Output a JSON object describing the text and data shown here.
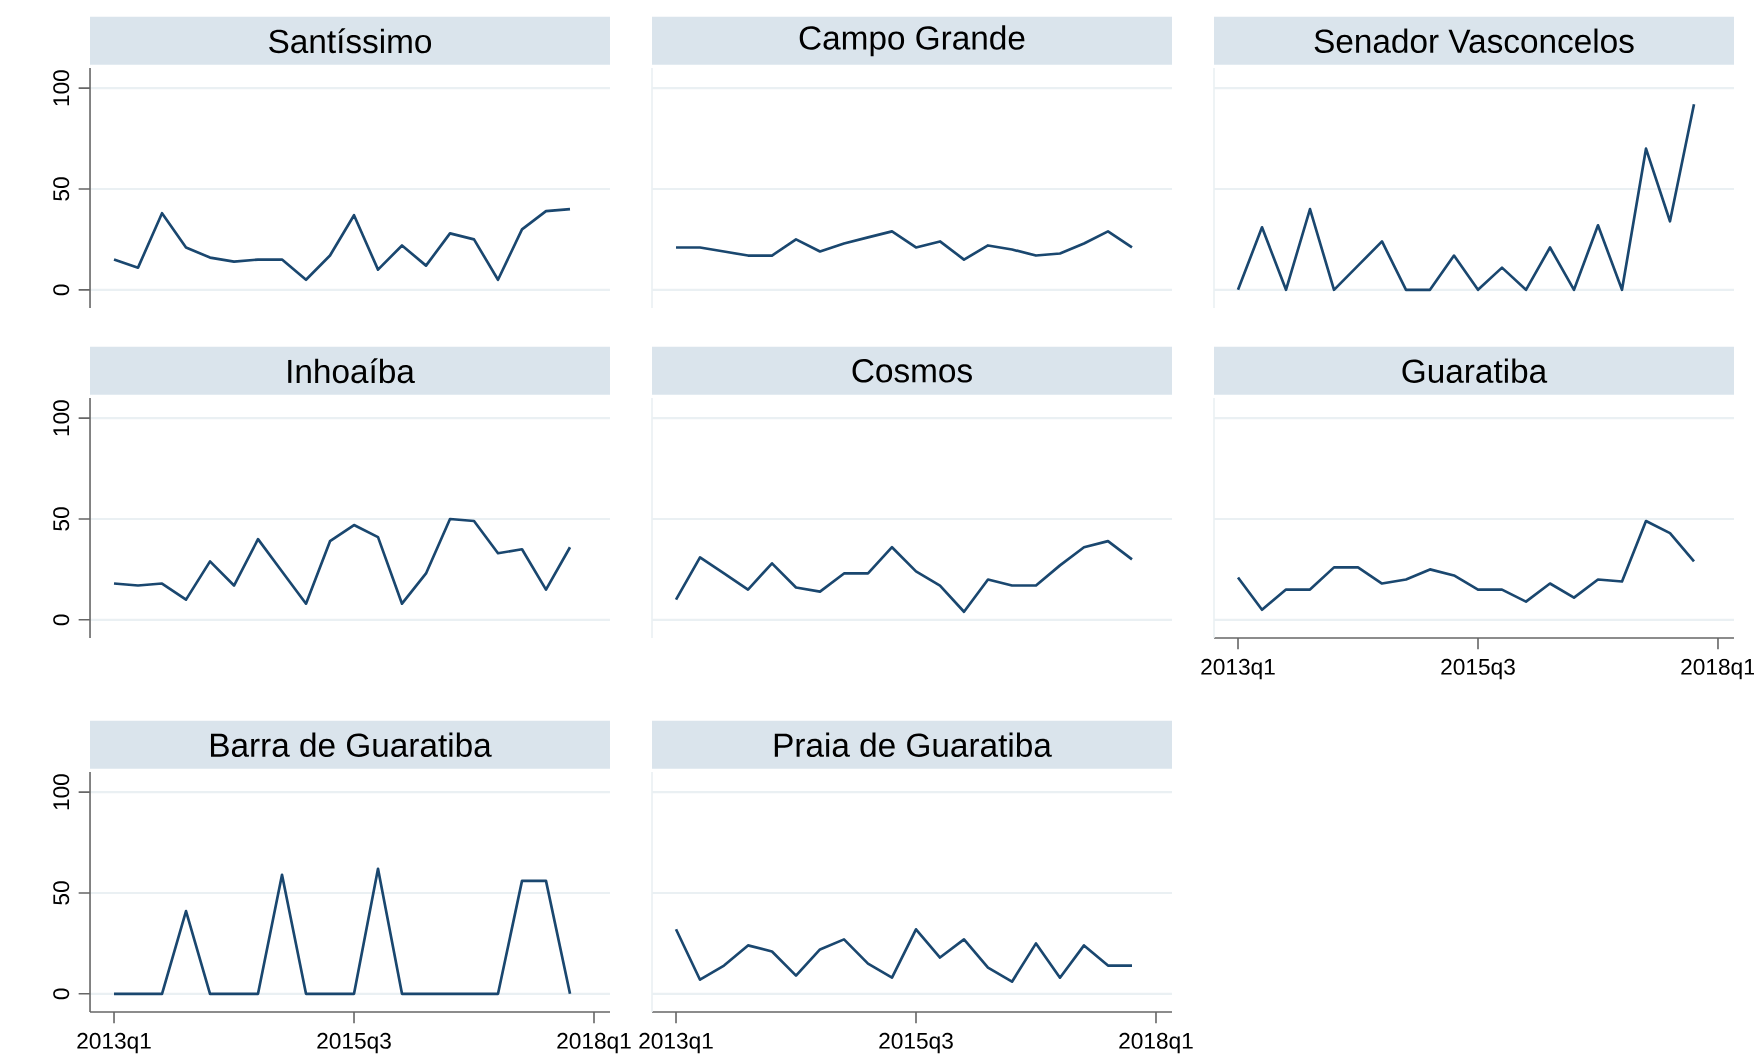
{
  "chart_data": [
    {
      "type": "line",
      "title": "Santíssimo",
      "color": "#1a476f",
      "x": [
        "2013-01",
        "2013-04",
        "2013-07",
        "2013-10",
        "2014-01",
        "2014-04",
        "2014-07",
        "2014-10",
        "2015-01",
        "2015-04",
        "2015-07",
        "2015-10",
        "2016-01",
        "2016-04",
        "2016-07",
        "2016-10",
        "2017-01",
        "2017-04",
        "2017-07",
        "2017-10"
      ],
      "values": [
        15,
        11,
        38,
        21,
        16,
        14,
        15,
        15,
        5,
        17,
        37,
        10,
        22,
        12,
        28,
        25,
        5,
        30,
        39,
        40
      ],
      "xlim": [
        "2012-10",
        "2018-03"
      ],
      "ylim": [
        -9,
        110
      ],
      "yticks": [
        0,
        50,
        100
      ],
      "grid": "y",
      "tick_labels": "y"
    },
    {
      "type": "line",
      "title": "Campo Grande",
      "color": "#1a476f",
      "x": [
        "2013-01",
        "2013-04",
        "2013-07",
        "2013-10",
        "2014-01",
        "2014-04",
        "2014-07",
        "2014-10",
        "2015-01",
        "2015-04",
        "2015-07",
        "2015-10",
        "2016-01",
        "2016-04",
        "2016-07",
        "2016-10",
        "2017-01",
        "2017-04",
        "2017-07",
        "2017-10"
      ],
      "values": [
        21,
        21,
        19,
        17,
        17,
        25,
        19,
        23,
        26,
        29,
        21,
        24,
        15,
        22,
        20,
        17,
        18,
        23,
        29,
        21
      ],
      "xlim": [
        "2012-10",
        "2018-03"
      ],
      "ylim": [
        -9,
        110
      ],
      "yticks": [
        0,
        50,
        100
      ],
      "grid": "y",
      "tick_labels": false
    },
    {
      "type": "line",
      "title": "Senador Vasconcelos",
      "color": "#1a476f",
      "x": [
        "2013-01",
        "2013-04",
        "2013-07",
        "2013-10",
        "2014-01",
        "2014-04",
        "2014-07",
        "2014-10",
        "2015-01",
        "2015-04",
        "2015-07",
        "2015-10",
        "2016-01",
        "2016-04",
        "2016-07",
        "2016-10",
        "2017-01",
        "2017-04",
        "2017-07",
        "2017-10"
      ],
      "values": [
        0,
        31,
        0,
        40,
        0,
        12,
        24,
        0,
        0,
        17,
        0,
        11,
        0,
        21,
        0,
        32,
        0,
        70,
        34,
        92
      ],
      "xlim": [
        "2012-10",
        "2018-03"
      ],
      "ylim": [
        -9,
        110
      ],
      "yticks": [
        0,
        50,
        100
      ],
      "grid": "y",
      "tick_labels": false
    },
    {
      "type": "line",
      "title": "Inhoaíba",
      "color": "#1a476f",
      "x": [
        "2013-01",
        "2013-04",
        "2013-07",
        "2013-10",
        "2014-01",
        "2014-04",
        "2014-07",
        "2014-10",
        "2015-01",
        "2015-04",
        "2015-07",
        "2015-10",
        "2016-01",
        "2016-04",
        "2016-07",
        "2016-10",
        "2017-01",
        "2017-04",
        "2017-07",
        "2017-10"
      ],
      "values": [
        18,
        17,
        18,
        10,
        29,
        17,
        40,
        24,
        8,
        39,
        47,
        41,
        8,
        23,
        50,
        49,
        33,
        35,
        15,
        36
      ],
      "xlim": [
        "2012-10",
        "2018-03"
      ],
      "ylim": [
        -9,
        110
      ],
      "yticks": [
        0,
        50,
        100
      ],
      "grid": "y",
      "tick_labels": "y"
    },
    {
      "type": "line",
      "title": "Cosmos",
      "color": "#1a476f",
      "x": [
        "2013-01",
        "2013-04",
        "2013-07",
        "2013-10",
        "2014-01",
        "2014-04",
        "2014-07",
        "2014-10",
        "2015-01",
        "2015-04",
        "2015-07",
        "2015-10",
        "2016-01",
        "2016-04",
        "2016-07",
        "2016-10",
        "2017-01",
        "2017-04",
        "2017-07",
        "2017-10"
      ],
      "values": [
        10,
        31,
        23,
        15,
        28,
        16,
        14,
        23,
        23,
        36,
        24,
        17,
        4,
        20,
        17,
        17,
        27,
        36,
        39,
        30
      ],
      "xlim": [
        "2012-10",
        "2018-03"
      ],
      "ylim": [
        -9,
        110
      ],
      "yticks": [
        0,
        50,
        100
      ],
      "grid": "y",
      "tick_labels": false
    },
    {
      "type": "line",
      "title": "Guaratiba",
      "color": "#1a476f",
      "x": [
        "2013-01",
        "2013-04",
        "2013-07",
        "2013-10",
        "2014-01",
        "2014-04",
        "2014-07",
        "2014-10",
        "2015-01",
        "2015-04",
        "2015-07",
        "2015-10",
        "2016-01",
        "2016-04",
        "2016-07",
        "2016-10",
        "2017-01",
        "2017-04",
        "2017-07",
        "2017-10"
      ],
      "values": [
        21,
        5,
        15,
        15,
        26,
        26,
        18,
        20,
        25,
        22,
        15,
        15,
        9,
        18,
        11,
        20,
        19,
        49,
        43,
        29
      ],
      "xlim": [
        "2012-10",
        "2018-03"
      ],
      "ylim": [
        -9,
        110
      ],
      "xticks": [
        {
          "value": "2013-01",
          "label": "2013q1"
        },
        {
          "value": "2015-07",
          "label": "2015q3"
        },
        {
          "value": "2018-01",
          "label": "2018q1"
        }
      ],
      "yticks": [
        0,
        50,
        100
      ],
      "grid": "y",
      "tick_labels": "x"
    },
    {
      "type": "line",
      "title": "Barra de Guaratiba",
      "color": "#1a476f",
      "x": [
        "2013-01",
        "2013-04",
        "2013-07",
        "2013-10",
        "2014-01",
        "2014-04",
        "2014-07",
        "2014-10",
        "2015-01",
        "2015-04",
        "2015-07",
        "2015-10",
        "2016-01",
        "2016-04",
        "2016-07",
        "2016-10",
        "2017-01",
        "2017-04",
        "2017-07",
        "2017-10"
      ],
      "values": [
        0,
        0,
        0,
        41,
        0,
        0,
        0,
        59,
        0,
        0,
        0,
        62,
        0,
        0,
        0,
        0,
        0,
        56,
        56,
        0
      ],
      "xlim": [
        "2012-10",
        "2018-03"
      ],
      "ylim": [
        -9,
        110
      ],
      "xticks": [
        {
          "value": "2013-01",
          "label": "2013q1"
        },
        {
          "value": "2015-07",
          "label": "2015q3"
        },
        {
          "value": "2018-01",
          "label": "2018q1"
        }
      ],
      "yticks": [
        0,
        50,
        100
      ],
      "grid": "y"
    },
    {
      "type": "line",
      "title": "Praia de Guaratiba",
      "color": "#1a476f",
      "x": [
        "2013-01",
        "2013-04",
        "2013-07",
        "2013-10",
        "2014-01",
        "2014-04",
        "2014-07",
        "2014-10",
        "2015-01",
        "2015-04",
        "2015-07",
        "2015-10",
        "2016-01",
        "2016-04",
        "2016-07",
        "2016-10",
        "2017-01",
        "2017-04",
        "2017-07",
        "2017-10"
      ],
      "values": [
        32,
        7,
        14,
        24,
        21,
        9,
        22,
        27,
        15,
        8,
        32,
        18,
        27,
        13,
        6,
        25,
        8,
        24,
        14,
        14
      ],
      "xlim": [
        "2012-10",
        "2018-03"
      ],
      "ylim": [
        -9,
        110
      ],
      "xticks": [
        {
          "value": "2013-01",
          "label": "2013q1"
        },
        {
          "value": "2015-07",
          "label": "2015q3"
        },
        {
          "value": "2018-01",
          "label": "2018q1"
        }
      ],
      "yticks": [
        0,
        50,
        100
      ],
      "grid": "y",
      "tick_labels": "x"
    }
  ]
}
